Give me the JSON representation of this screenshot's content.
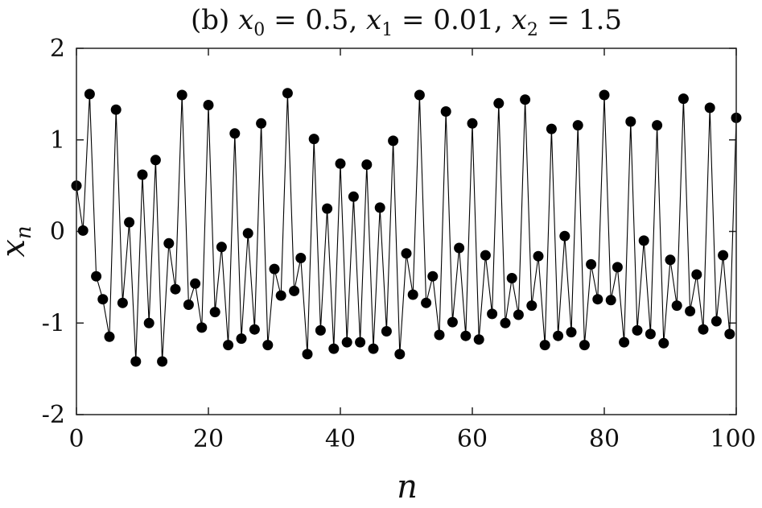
{
  "chart_data": {
    "type": "line",
    "title": "(b) x0 = 0.5, x1 = 0.01, x2 = 1.5",
    "title_parts": {
      "prefix": "(b) ",
      "var0": "x",
      "sub0": "0",
      "eq0": " = 0.5,",
      "var1": " x",
      "sub1": "1",
      "eq1": " = 0.01,",
      "var2": " x",
      "sub2": "2",
      "eq2": " = 1.5"
    },
    "xlabel": "n",
    "ylabel": "x",
    "ylabel_subscript": "n",
    "xlim": [
      0,
      100
    ],
    "ylim": [
      -2,
      2
    ],
    "x_ticks": [
      0,
      20,
      40,
      60,
      80,
      100
    ],
    "y_ticks": [
      2,
      1,
      0,
      -1,
      -2
    ],
    "x_tick_labels": [
      "0",
      "20",
      "40",
      "60",
      "80",
      "100"
    ],
    "y_tick_labels": [
      "2",
      "1",
      "0",
      "-1",
      "-2"
    ],
    "grid": false,
    "series": [
      {
        "color": "#000000",
        "marker": "filled-circle",
        "x": [
          0,
          1,
          2,
          3,
          4,
          5,
          6,
          7,
          8,
          9,
          10,
          11,
          12,
          13,
          14,
          15,
          16,
          17,
          18,
          19,
          20,
          21,
          22,
          23,
          24,
          25,
          26,
          27,
          28,
          29,
          30,
          31,
          32,
          33,
          34,
          35,
          36,
          37,
          38,
          39,
          40,
          41,
          42,
          43,
          44,
          45,
          46,
          47,
          48,
          49,
          50,
          51,
          52,
          53,
          54,
          55,
          56,
          57,
          58,
          59,
          60,
          61,
          62,
          63,
          64,
          65,
          66,
          67,
          68,
          69,
          70,
          71,
          72,
          73,
          74,
          75,
          76,
          77,
          78,
          79,
          80,
          81,
          82,
          83,
          84,
          85,
          86,
          87,
          88,
          89,
          90,
          91,
          92,
          93,
          94,
          95,
          96,
          97,
          98,
          99,
          100
        ],
        "y": [
          0.5,
          0.01,
          1.5,
          -0.49,
          -0.74,
          -1.15,
          1.33,
          -0.78,
          0.1,
          -1.42,
          0.62,
          -1.0,
          0.78,
          -1.42,
          -0.13,
          -0.63,
          1.49,
          -0.8,
          -0.57,
          -1.05,
          1.38,
          -0.88,
          -0.17,
          -1.24,
          1.07,
          -1.17,
          -0.02,
          -1.07,
          1.18,
          -1.24,
          -0.41,
          -0.7,
          1.51,
          -0.65,
          -0.29,
          -1.34,
          1.01,
          -1.08,
          0.25,
          -1.28,
          0.74,
          -1.21,
          0.38,
          -1.21,
          0.73,
          -1.28,
          0.26,
          -1.09,
          0.99,
          -1.34,
          -0.24,
          -0.69,
          1.49,
          -0.78,
          -0.49,
          -1.13,
          1.31,
          -0.99,
          -0.18,
          -1.14,
          1.18,
          -1.18,
          -0.26,
          -0.9,
          1.4,
          -1.0,
          -0.51,
          -0.91,
          1.44,
          -0.81,
          -0.27,
          -1.24,
          1.12,
          -1.14,
          -0.05,
          -1.1,
          1.16,
          -1.24,
          -0.36,
          -0.74,
          1.49,
          -0.75,
          -0.39,
          -1.21,
          1.2,
          -1.08,
          -0.1,
          -1.12,
          1.16,
          -1.22,
          -0.31,
          -0.81,
          1.45,
          -0.87,
          -0.47,
          -1.07,
          1.35,
          -0.98,
          -0.26,
          -1.12,
          1.24
        ]
      }
    ]
  }
}
